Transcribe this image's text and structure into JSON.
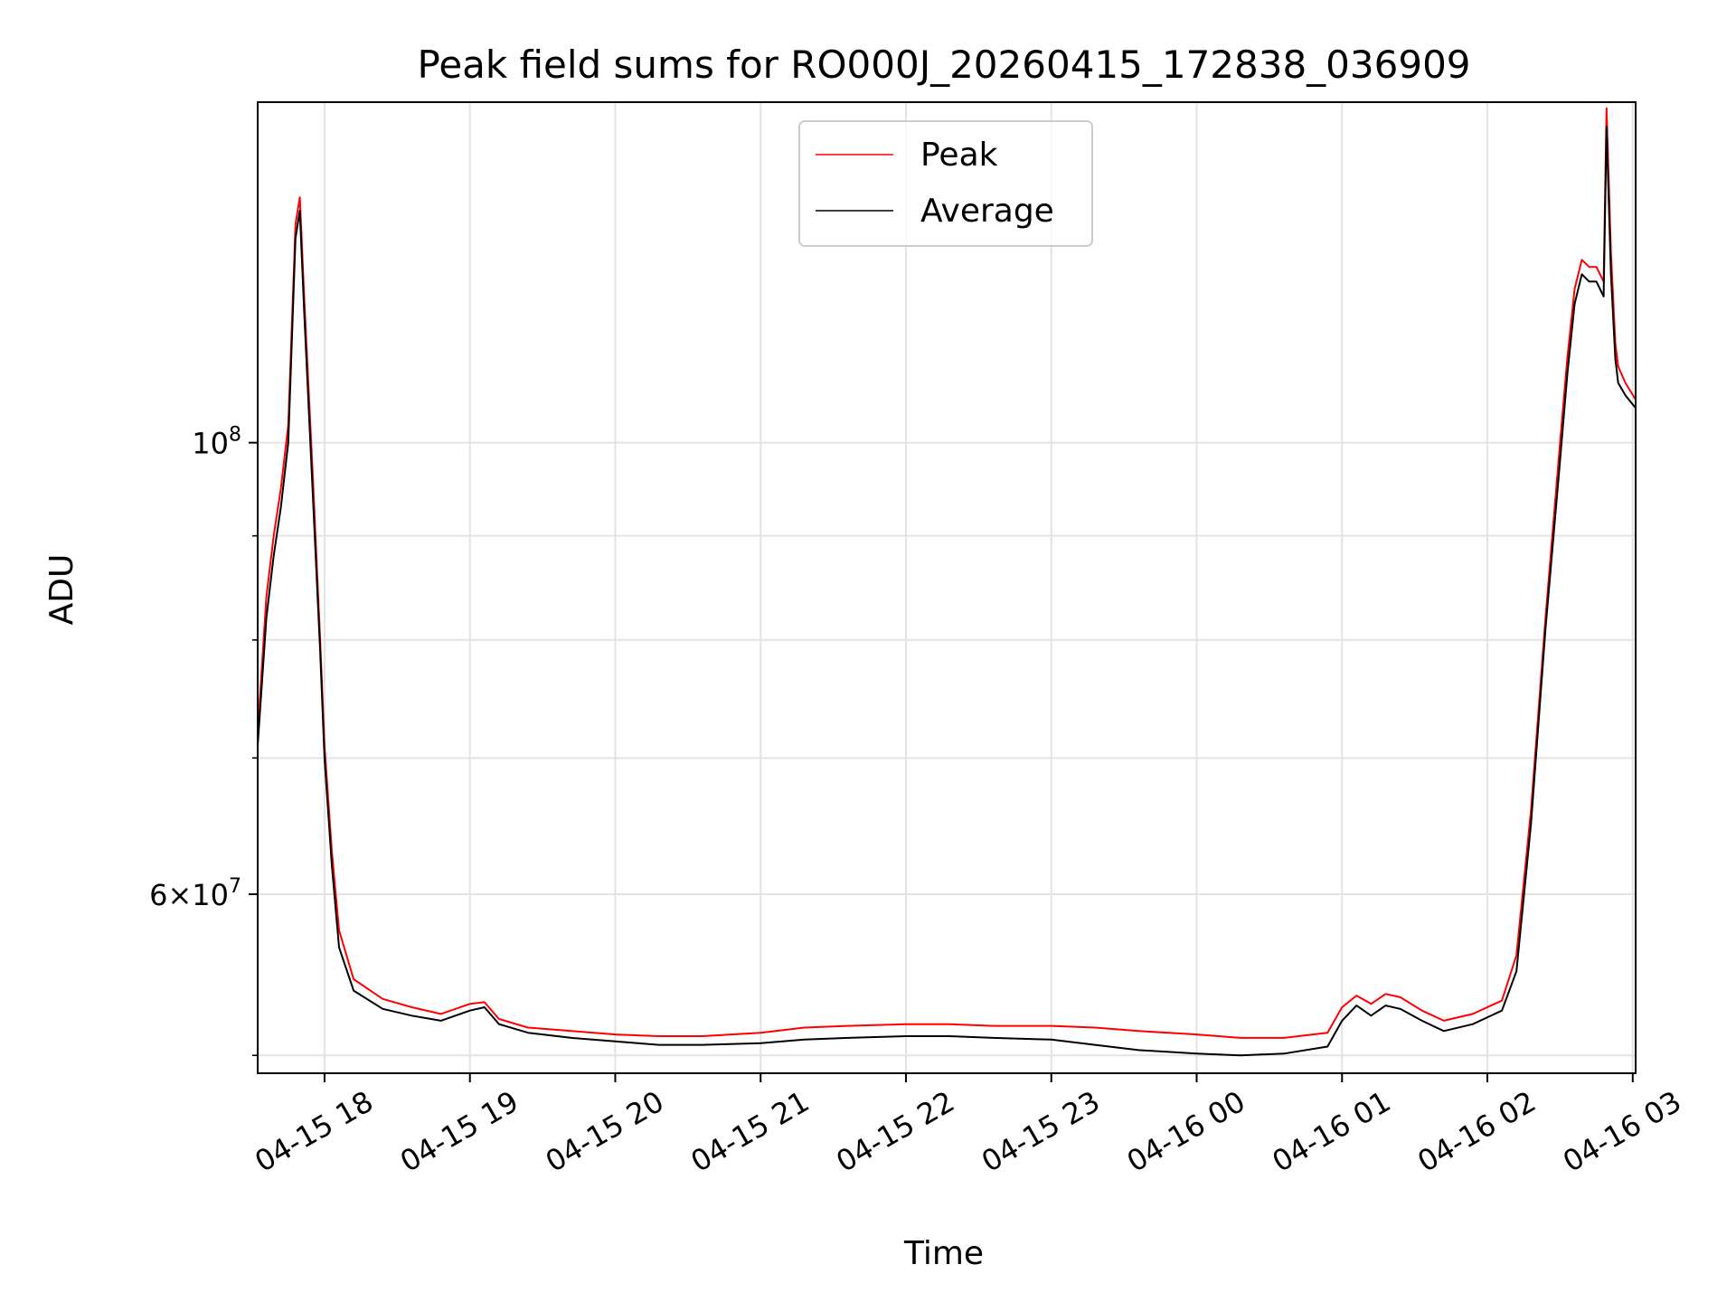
{
  "chart_data": {
    "type": "line",
    "title": "Peak field sums for RO000J_20260415_172838_036909",
    "xlabel": "Time",
    "ylabel": "ADU",
    "yscale": "log",
    "ylim": [
      49000000,
      147000000
    ],
    "xlim_hours": [
      17.54,
      27.02
    ],
    "grid": true,
    "legend_position": "upper-center",
    "x_ticks": [
      {
        "hour": 18,
        "label": "04-15 18"
      },
      {
        "hour": 19,
        "label": "04-15 19"
      },
      {
        "hour": 20,
        "label": "04-15 20"
      },
      {
        "hour": 21,
        "label": "04-15 21"
      },
      {
        "hour": 22,
        "label": "04-15 22"
      },
      {
        "hour": 23,
        "label": "04-15 23"
      },
      {
        "hour": 24,
        "label": "04-16 00"
      },
      {
        "hour": 25,
        "label": "04-16 01"
      },
      {
        "hour": 26,
        "label": "04-16 02"
      },
      {
        "hour": 27,
        "label": "04-16 03"
      }
    ],
    "y_major_ticks": [
      {
        "value": 100000000,
        "label": "10^8"
      },
      {
        "value": 60000000,
        "label": "6×10^7"
      }
    ],
    "y_minor_ticks": [
      50000000,
      70000000,
      80000000,
      90000000
    ],
    "series": [
      {
        "name": "Peak",
        "color": "#ff0000",
        "x_hours": [
          17.54,
          17.6,
          17.65,
          17.7,
          17.75,
          17.8,
          17.83,
          17.86,
          17.92,
          17.97,
          18.0,
          18.05,
          18.1,
          18.2,
          18.4,
          18.6,
          18.8,
          19.0,
          19.1,
          19.2,
          19.4,
          19.7,
          20.0,
          20.3,
          20.6,
          21.0,
          21.3,
          21.6,
          22.0,
          22.3,
          22.6,
          23.0,
          23.3,
          23.6,
          24.0,
          24.3,
          24.6,
          24.9,
          25.0,
          25.1,
          25.2,
          25.3,
          25.4,
          25.55,
          25.7,
          25.9,
          26.1,
          26.2,
          26.3,
          26.4,
          26.5,
          26.55,
          26.6,
          26.65,
          26.7,
          26.75,
          26.8,
          26.82,
          26.85,
          26.88,
          26.9,
          26.95,
          27.02
        ],
        "values": [
          72000000,
          84000000,
          90000000,
          95000000,
          102000000,
          128000000,
          132000000,
          118000000,
          96000000,
          80000000,
          71000000,
          63000000,
          57600000,
          54500000,
          53300000,
          52800000,
          52400000,
          53000000,
          53100000,
          52100000,
          51600000,
          51400000,
          51200000,
          51100000,
          51100000,
          51300000,
          51600000,
          51700000,
          51800000,
          51800000,
          51700000,
          51700000,
          51600000,
          51400000,
          51200000,
          51000000,
          51000000,
          51300000,
          52800000,
          53500000,
          53000000,
          53600000,
          53400000,
          52600000,
          52000000,
          52400000,
          53200000,
          56000000,
          66000000,
          82000000,
          100000000,
          110000000,
          119000000,
          123000000,
          122000000,
          122000000,
          120000000,
          146000000,
          124000000,
          112000000,
          109000000,
          107000000,
          105000000
        ]
      },
      {
        "name": "Average",
        "color": "#000000",
        "x_hours": [
          17.54,
          17.6,
          17.65,
          17.7,
          17.75,
          17.8,
          17.83,
          17.86,
          17.92,
          17.97,
          18.0,
          18.05,
          18.1,
          18.2,
          18.4,
          18.6,
          18.8,
          19.0,
          19.1,
          19.2,
          19.4,
          19.7,
          20.0,
          20.3,
          20.6,
          21.0,
          21.3,
          21.6,
          22.0,
          22.3,
          22.6,
          23.0,
          23.3,
          23.6,
          24.0,
          24.3,
          24.6,
          24.9,
          25.0,
          25.1,
          25.2,
          25.3,
          25.4,
          25.55,
          25.7,
          25.9,
          26.1,
          26.2,
          26.3,
          26.4,
          26.5,
          26.55,
          26.6,
          26.65,
          26.7,
          26.75,
          26.8,
          26.82,
          26.85,
          26.88,
          26.9,
          26.95,
          27.02
        ],
        "values": [
          71000000,
          82000000,
          88000000,
          93000000,
          100000000,
          126000000,
          130000000,
          116000000,
          94000000,
          79000000,
          70000000,
          62000000,
          56500000,
          53800000,
          52700000,
          52300000,
          52000000,
          52600000,
          52800000,
          51800000,
          51300000,
          51000000,
          50800000,
          50600000,
          50600000,
          50700000,
          50900000,
          51000000,
          51100000,
          51100000,
          51000000,
          50900000,
          50600000,
          50300000,
          50100000,
          50000000,
          50100000,
          50500000,
          52000000,
          52900000,
          52300000,
          52900000,
          52700000,
          52000000,
          51400000,
          51800000,
          52600000,
          55000000,
          65000000,
          81000000,
          98000000,
          108000000,
          117000000,
          121000000,
          120000000,
          120000000,
          118000000,
          143000000,
          121000000,
          110000000,
          107000000,
          105500000,
          104000000
        ]
      }
    ]
  },
  "legend": {
    "peak_label": "Peak",
    "average_label": "Average"
  }
}
